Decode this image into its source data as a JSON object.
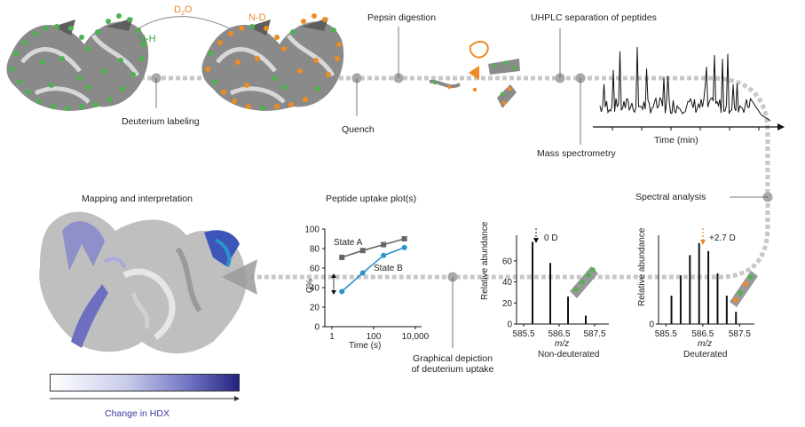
{
  "steps": {
    "deuterium_labeling": "Deuterium labeling",
    "reagent": "D",
    "reagent_sub": "2",
    "reagent_tail": "O",
    "nh_label": "N-H",
    "nd_label": "N-D",
    "quench": "Quench",
    "pepsin_digestion": "Pepsin digestion",
    "uhplc": "UHPLC separation of peptides",
    "time_axis": "Time (min)",
    "mass_spectrometry": "Mass spectrometry",
    "spectral_analysis": "Spectral analysis",
    "mapping": "Mapping and interpretation",
    "uptake_plot": "Peptide uptake plot(s)",
    "graphical_line1": "Graphical depiction",
    "graphical_line2": "of deuterium uptake",
    "change_hdx": "Change in HDX"
  },
  "colors": {
    "amide_h": "#4db34d",
    "amide_d": "#f08a24",
    "track": "#c8c8c8",
    "hdx_low": "#ffffff",
    "hdx_high": "#23237f",
    "state_a": "#666666",
    "state_b": "#2a93c9"
  },
  "chart_data": [
    {
      "type": "line",
      "title": "Peptide uptake plot(s)",
      "xlabel": "Time (s)",
      "ylabel": "%D",
      "x_scale": "log",
      "x_tick_labels": [
        "1",
        "100",
        "10,000"
      ],
      "ylim": [
        0,
        100
      ],
      "y_ticks": [
        0,
        20,
        40,
        60,
        80,
        100
      ],
      "x": [
        3,
        30,
        300,
        3000
      ],
      "series": [
        {
          "name": "State A",
          "values": [
            71,
            78,
            84,
            90
          ],
          "marker": "square"
        },
        {
          "name": "State B",
          "values": [
            36,
            55,
            73,
            81
          ],
          "marker": "circle"
        }
      ]
    },
    {
      "type": "bar",
      "title": "Non-deuterated",
      "xlabel": "m/z",
      "ylabel": "Relative abundance",
      "x_ticks": [
        585.5,
        586.5,
        587.5
      ],
      "y_ticks": [
        0,
        20,
        40,
        60
      ],
      "annotation": "0 D",
      "peaks": [
        {
          "mz": 585.75,
          "value": 78
        },
        {
          "mz": 586.25,
          "value": 58
        },
        {
          "mz": 586.75,
          "value": 26
        },
        {
          "mz": 587.25,
          "value": 8
        }
      ]
    },
    {
      "type": "bar",
      "title": "Deuterated",
      "xlabel": "m/z",
      "ylabel": "Relative abundance",
      "x_ticks": [
        585.5,
        586.5,
        587.5
      ],
      "y_ticks": [
        0
      ],
      "annotation": "+2.7 D",
      "peaks": [
        {
          "mz": 585.65,
          "value": 28
        },
        {
          "mz": 585.9,
          "value": 48
        },
        {
          "mz": 586.15,
          "value": 68
        },
        {
          "mz": 586.4,
          "value": 80
        },
        {
          "mz": 586.65,
          "value": 72
        },
        {
          "mz": 586.9,
          "value": 50
        },
        {
          "mz": 587.15,
          "value": 28
        },
        {
          "mz": 587.4,
          "value": 12
        }
      ]
    }
  ]
}
